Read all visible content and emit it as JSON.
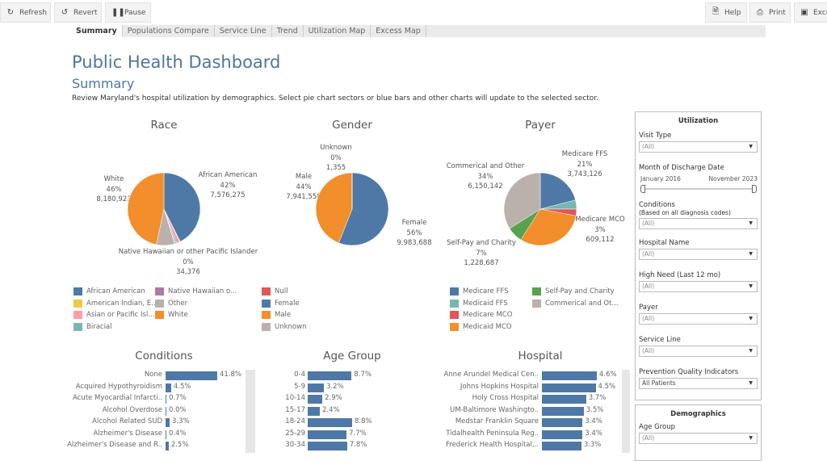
{
  "toolbar": {
    "refresh": "Refresh",
    "revert": "Revert",
    "pause": "Pause",
    "help": "Help",
    "print": "Print",
    "excel": "Exce"
  },
  "tabs": [
    "Summary",
    "Populations Compare",
    "Service Line",
    "Trend",
    "Utilization Map",
    "Excess Map"
  ],
  "header": {
    "title": "Public Health Dashboard",
    "subtitle": "Summary",
    "description": "Review Maryland's hospital utilization by demographics. Select pie chart sectors or blue bars and other charts will update to the selected sector."
  },
  "chart_data": [
    {
      "type": "pie",
      "title": "Race",
      "slices": [
        {
          "name": "African American",
          "pct": 42,
          "count": "7,576,275",
          "label": "African American",
          "label_pct": "42%",
          "color": "#4e79a7"
        },
        {
          "name": "American Indian, E...",
          "pct": 0.3,
          "color": "#edc948"
        },
        {
          "name": "Asian or Pacific Isl...",
          "pct": 1.5,
          "color": "#ff9da7"
        },
        {
          "name": "Biracial",
          "pct": 0.6,
          "color": "#76b7b2"
        },
        {
          "name": "Native Hawaiian o...",
          "pct": 0.2,
          "count": "34,376",
          "label": "Native Hawaiian or other Pacific Islander",
          "label_pct": "0%",
          "color": "#b07aa1"
        },
        {
          "name": "Other",
          "pct": 8,
          "color": "#bab0ac"
        },
        {
          "name": "White",
          "pct": 46,
          "count": "8,180,923",
          "label": "White",
          "label_pct": "46%",
          "color": "#f28e2b"
        }
      ],
      "legend": [
        "African American",
        "American Indian, E...",
        "Asian or Pacific Isl...",
        "Biracial",
        "Native Hawaiian o...",
        "Other",
        "White"
      ]
    },
    {
      "type": "pie",
      "title": "Gender",
      "slices": [
        {
          "name": "Female",
          "pct": 56,
          "count": "9,983,688",
          "label": "Female",
          "label_pct": "56%",
          "color": "#4e79a7"
        },
        {
          "name": "Male",
          "pct": 44,
          "count": "7,941,558",
          "label": "Male",
          "label_pct": "44%",
          "color": "#f28e2b"
        },
        {
          "name": "Unknown",
          "pct": 0.01,
          "count": "1,355",
          "label": "Unknown",
          "label_pct": "0%",
          "color": "#bab0ac"
        }
      ],
      "legend": [
        {
          "name": "Null",
          "color": "#e15759"
        },
        {
          "name": "Female",
          "color": "#4e79a7"
        },
        {
          "name": "Male",
          "color": "#f28e2b"
        },
        {
          "name": "Unknown",
          "color": "#bab0ac"
        }
      ]
    },
    {
      "type": "pie",
      "title": "Payer",
      "slices": [
        {
          "name": "Medicare FFS",
          "pct": 21,
          "count": "3,743,126",
          "label": "Medicare FFS",
          "label_pct": "21%",
          "color": "#4e79a7"
        },
        {
          "name": "Medicaid FFS",
          "pct": 4,
          "color": "#76b7b2"
        },
        {
          "name": "Medicare MCO",
          "pct": 3,
          "count": "609,112",
          "label": "Medicare MCO",
          "label_pct": "3%",
          "color": "#e15759"
        },
        {
          "name": "Medicaid MCO",
          "pct": 31,
          "color": "#f28e2b"
        },
        {
          "name": "Self-Pay and Charity",
          "pct": 7,
          "count": "1,228,687",
          "label": "Self-Pay and Charity",
          "label_pct": "7%",
          "color": "#59a14f"
        },
        {
          "name": "Commerical and Ot...",
          "pct": 34,
          "count": "6,150,142",
          "label": "Commerical and Other",
          "label_pct": "34%",
          "color": "#bab0ac"
        }
      ]
    },
    {
      "type": "bar",
      "title": "Conditions",
      "categories": [
        "None",
        "Acquired Hypothyroidism",
        "Acute Myocardial Infarcti..",
        "Alcohol Overdose",
        "Alcohol Related SUD",
        "Alzheimer's Disease",
        "Alzheimer's Disease and R.."
      ],
      "values": [
        41.8,
        4.5,
        0.7,
        0.0,
        3.3,
        0.4,
        2.5
      ],
      "labels": [
        "41.8%",
        "4.5%",
        "0.7%",
        "0.0%",
        "3.3%",
        "0.4%",
        "2.5%"
      ]
    },
    {
      "type": "bar",
      "title": "Age Group",
      "categories": [
        "0-4",
        "5-9",
        "10-14",
        "15-17",
        "18-24",
        "25-29",
        "30-34"
      ],
      "values": [
        8.7,
        3.2,
        2.9,
        2.4,
        8.8,
        7.7,
        7.8
      ],
      "labels": [
        "8.7%",
        "3.2%",
        "2.9%",
        "2.4%",
        "8.8%",
        "7.7%",
        "7.8%"
      ]
    },
    {
      "type": "bar",
      "title": "Hospital",
      "categories": [
        "Anne Arundel Medical Cen..",
        "Johns Hopkins Hospital",
        "Holy Cross Hospital",
        "UM-Baltimore Washingto..",
        "Medstar Franklin Square",
        "Tidalhealth Peninsula Reg..",
        "Frederick Health Hospital,.."
      ],
      "values": [
        4.6,
        4.5,
        3.7,
        3.5,
        3.4,
        3.4,
        3.3
      ],
      "labels": [
        "4.6%",
        "4.5%",
        "3.7%",
        "3.5%",
        "3.4%",
        "3.4%",
        "3.3%"
      ]
    }
  ],
  "filters": {
    "utilization_title": "Utilization",
    "visit_type": {
      "label": "Visit Type",
      "value": "(All)"
    },
    "discharge": {
      "label": "Month of Discharge Date",
      "start": "January 2016",
      "end": "November 2023"
    },
    "conditions": {
      "label": "Conditions",
      "sublabel": "(Based on all diagnosis codes)",
      "value": "(All)"
    },
    "hospital": {
      "label": "Hospital Name",
      "value": "(All)"
    },
    "high_need": {
      "label": "High Need (Last 12 mo)",
      "value": "(All)"
    },
    "payer": {
      "label": "Payer",
      "value": "(All)"
    },
    "service_line": {
      "label": "Service Line",
      "value": "(All)"
    },
    "pqi": {
      "label": "Prevention Quality Indicators",
      "value": "All Patients"
    },
    "demographics_title": "Demographics",
    "age_group": {
      "label": "Age Group",
      "value": "(All)"
    }
  }
}
